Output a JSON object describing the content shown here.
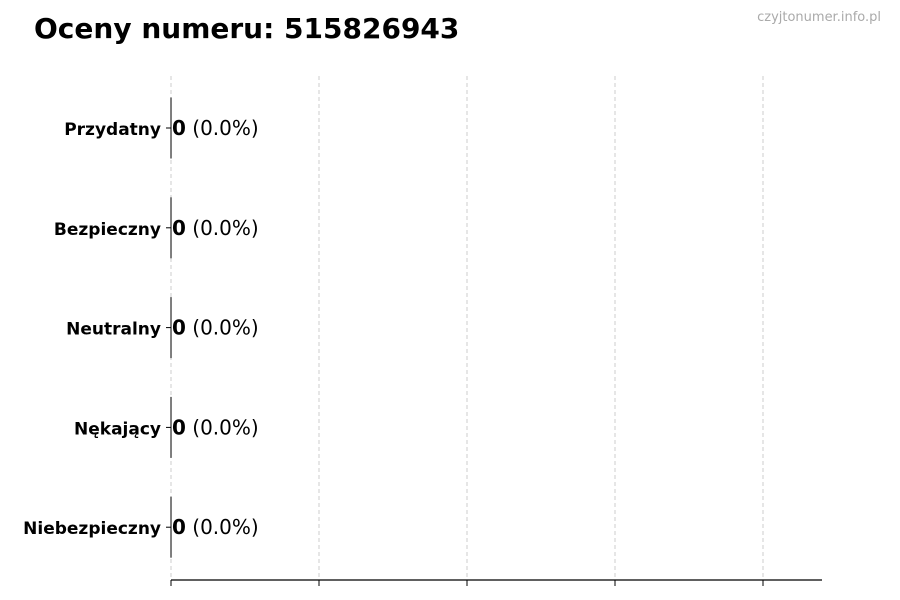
{
  "title": "Oceny numeru: 515826943",
  "watermark": "czyjtonumer.info.pl",
  "chart_data": {
    "type": "bar",
    "orientation": "horizontal",
    "title": "Oceny numeru: 515826943",
    "categories": [
      "Przydatny",
      "Bezpieczny",
      "Neutralny",
      "Nękający",
      "Niebezpieczny"
    ],
    "values": [
      0,
      0,
      0,
      0,
      0
    ],
    "labels": [
      {
        "count": "0",
        "percent": "(0.0%)"
      },
      {
        "count": "0",
        "percent": "(0.0%)"
      },
      {
        "count": "0",
        "percent": "(0.0%)"
      },
      {
        "count": "0",
        "percent": "(0.0%)"
      },
      {
        "count": "0",
        "percent": "(0.0%)"
      }
    ],
    "xlabel": "",
    "ylabel": "",
    "xgrid": true,
    "x_tick_labels_shown": false,
    "bar_edge_color": "#000000",
    "grid_color": "#cccccc"
  }
}
